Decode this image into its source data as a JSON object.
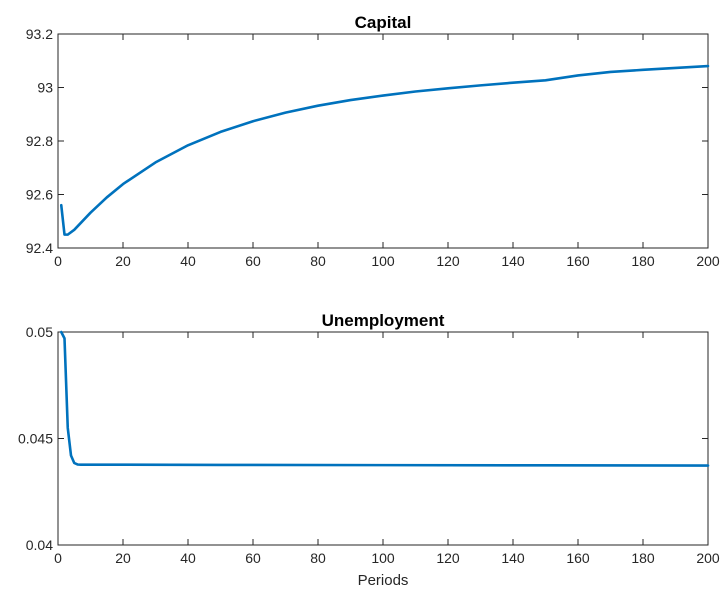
{
  "chart_data": [
    {
      "type": "line",
      "title": "Capital",
      "xlabel": "",
      "ylabel": "",
      "xlim": [
        0,
        200
      ],
      "ylim": [
        92.4,
        93.2
      ],
      "xticks": [
        0,
        20,
        40,
        60,
        80,
        100,
        120,
        140,
        160,
        180,
        200
      ],
      "yticks": [
        92.4,
        92.6,
        92.8,
        93,
        93.2
      ],
      "ytick_labels": [
        "92.4",
        "92.6",
        "92.8",
        "93",
        "93.2"
      ],
      "grid": false,
      "legend": "none",
      "series": [
        {
          "color": "#0072bd",
          "x": [
            1,
            2,
            3,
            5,
            10,
            15,
            20,
            30,
            40,
            50,
            60,
            70,
            80,
            90,
            100,
            110,
            120,
            130,
            140,
            150,
            160,
            170,
            180,
            190,
            200
          ],
          "y": [
            92.56,
            92.45,
            92.45,
            92.468,
            92.532,
            92.589,
            92.639,
            92.72,
            92.784,
            92.834,
            92.874,
            92.906,
            92.932,
            92.953,
            92.97,
            92.985,
            92.997,
            93.008,
            93.018,
            93.027,
            93.045,
            93.058,
            93.066,
            93.073,
            93.08
          ]
        }
      ]
    },
    {
      "type": "line",
      "title": "Unemployment",
      "xlabel": "Periods",
      "ylabel": "",
      "xlim": [
        0,
        200
      ],
      "ylim": [
        0.04,
        0.05
      ],
      "xticks": [
        0,
        20,
        40,
        60,
        80,
        100,
        120,
        140,
        160,
        180,
        200
      ],
      "yticks": [
        0.04,
        0.045,
        0.05
      ],
      "ytick_labels": [
        "0.04",
        "0.045",
        "0.05"
      ],
      "grid": false,
      "legend": "none",
      "series": [
        {
          "color": "#0072bd",
          "x": [
            1,
            2,
            3,
            4,
            5,
            6,
            7,
            10,
            20,
            50,
            100,
            150,
            200
          ],
          "y": [
            0.05,
            0.0497,
            0.0455,
            0.0442,
            0.04385,
            0.04378,
            0.04377,
            0.04377,
            0.04377,
            0.04376,
            0.04375,
            0.04374,
            0.04373
          ]
        }
      ]
    }
  ]
}
